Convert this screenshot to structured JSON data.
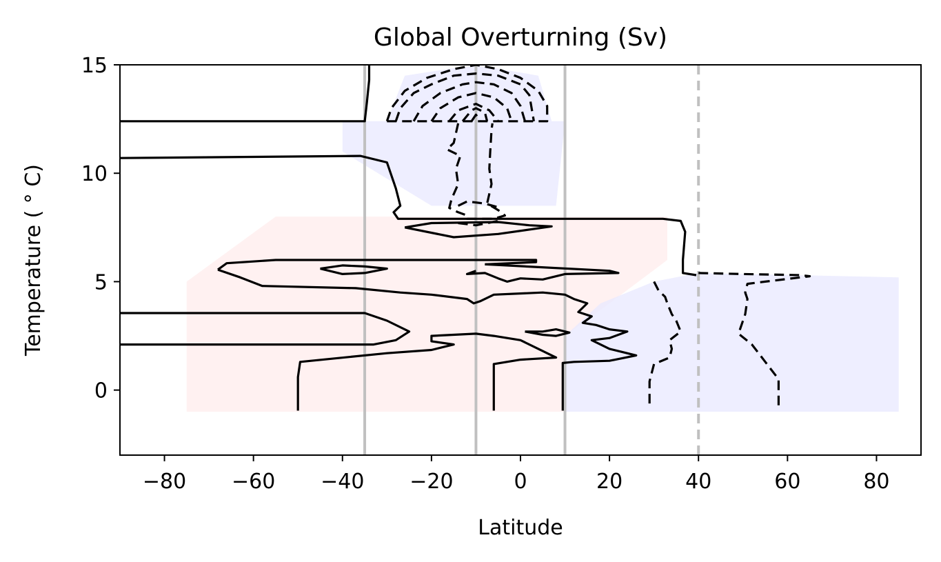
{
  "chart_data": {
    "type": "contour",
    "title": "Global Overturning (Sv)",
    "xlabel": "Latitude",
    "ylabel": "Temperature ( ° C)",
    "xlim": [
      -90,
      90
    ],
    "ylim": [
      -3,
      15
    ],
    "xticks": [
      -80,
      -60,
      -40,
      -20,
      0,
      20,
      40,
      60,
      80
    ],
    "xtick_labels": [
      "−80",
      "−60",
      "−40",
      "−20",
      "0",
      "20",
      "40",
      "60",
      "80"
    ],
    "yticks": [
      0,
      5,
      10,
      15
    ],
    "ytick_labels": [
      "0",
      "5",
      "10",
      "15"
    ],
    "grid": false,
    "colors": {
      "positive_fill": "#ffecec",
      "negative_fill": "#e8e8ff",
      "reference_line": "#c0c0c0",
      "contour": "#000000"
    },
    "vertical_reference_lines": [
      {
        "x": -35,
        "style": "solid"
      },
      {
        "x": -10,
        "style": "solid"
      },
      {
        "x": 10,
        "style": "solid"
      },
      {
        "x": 40,
        "style": "dashed"
      }
    ],
    "filled_regions": [
      {
        "sign": "positive",
        "points": [
          [
            -75,
            -1
          ],
          [
            10,
            -1
          ],
          [
            10,
            2.5
          ],
          [
            20,
            4
          ],
          [
            33,
            6
          ],
          [
            33,
            8
          ],
          [
            -55,
            8
          ],
          [
            -75,
            5
          ]
        ]
      },
      {
        "sign": "negative",
        "points": [
          [
            10,
            -1
          ],
          [
            85,
            -1
          ],
          [
            85,
            5.2
          ],
          [
            40,
            5.4
          ],
          [
            30,
            5
          ],
          [
            18,
            4
          ],
          [
            10,
            2.5
          ]
        ]
      },
      {
        "sign": "negative",
        "points": [
          [
            -30,
            12.4
          ],
          [
            7,
            12.4
          ],
          [
            4,
            14.5
          ],
          [
            -10,
            15
          ],
          [
            -26,
            14.5
          ]
        ]
      },
      {
        "sign": "negative",
        "points": [
          [
            -40,
            12.4
          ],
          [
            10,
            12.4
          ],
          [
            8,
            8.5
          ],
          [
            -20,
            8.5
          ],
          [
            -40,
            11
          ]
        ]
      }
    ],
    "contours": [
      {
        "sign": "positive",
        "points": [
          [
            -90,
            12.4
          ],
          [
            -35,
            12.4
          ],
          [
            -34.5,
            13.3
          ],
          [
            -34,
            14.3
          ],
          [
            -34,
            15
          ]
        ]
      },
      {
        "sign": "positive",
        "points": [
          [
            -90,
            10.7
          ],
          [
            -36,
            10.8
          ],
          [
            -30,
            10.5
          ],
          [
            -28,
            9.3
          ],
          [
            -27,
            8.5
          ],
          [
            -28.5,
            8.2
          ],
          [
            -27.5,
            7.9
          ],
          [
            0,
            7.9
          ],
          [
            32,
            7.9
          ],
          [
            36,
            7.8
          ],
          [
            37,
            7.3
          ],
          [
            36.5,
            6.0
          ],
          [
            36.5,
            5.4
          ],
          [
            39.5,
            5.3
          ]
        ]
      },
      {
        "sign": "positive",
        "points": [
          [
            -90,
            3.55
          ],
          [
            -35,
            3.55
          ],
          [
            -30,
            3.2
          ],
          [
            -25,
            2.7
          ],
          [
            -28,
            2.3
          ],
          [
            -33,
            2.1
          ],
          [
            -90,
            2.1
          ]
        ]
      },
      {
        "sign": "positive",
        "points": [
          [
            -68,
            5.55
          ],
          [
            -66,
            5.85
          ],
          [
            -55,
            6.0
          ],
          [
            3.5,
            6.0
          ],
          [
            3.5,
            5.9
          ],
          [
            -8,
            5.8
          ]
        ]
      },
      {
        "sign": "positive",
        "points": [
          [
            -68,
            5.55
          ],
          [
            -63,
            5.2
          ],
          [
            -58,
            4.8
          ],
          [
            -37,
            4.7
          ],
          [
            -27,
            4.5
          ],
          [
            -20,
            4.4
          ],
          [
            -12,
            4.2
          ],
          [
            -10.5,
            4.0
          ],
          [
            -9,
            4.1
          ],
          [
            -6,
            4.4
          ],
          [
            5,
            4.5
          ],
          [
            10,
            4.4
          ],
          [
            12,
            4.2
          ],
          [
            15,
            4.0
          ],
          [
            13,
            3.6
          ],
          [
            16,
            3.4
          ],
          [
            14,
            3.1
          ],
          [
            17,
            3.0
          ],
          [
            20,
            2.8
          ],
          [
            24,
            2.7
          ],
          [
            20,
            2.4
          ],
          [
            16,
            2.3
          ],
          [
            20,
            1.9
          ],
          [
            26,
            1.6
          ],
          [
            20,
            1.35
          ],
          [
            12,
            1.3
          ],
          [
            9.5,
            1.25
          ],
          [
            9.5,
            -0.95
          ]
        ]
      },
      {
        "sign": "positive",
        "points": [
          [
            -8,
            5.8
          ],
          [
            20,
            5.5
          ],
          [
            22,
            5.4
          ],
          [
            10,
            5.35
          ],
          [
            5,
            5.1
          ],
          [
            0,
            5.15
          ],
          [
            -3,
            5.0
          ],
          [
            -5,
            5.15
          ],
          [
            -8,
            5.4
          ],
          [
            -12,
            5.35
          ],
          [
            -10,
            5.5
          ]
        ]
      },
      {
        "sign": "positive",
        "points": [
          [
            -45,
            5.6
          ],
          [
            -40,
            5.75
          ],
          [
            -35,
            5.7
          ],
          [
            -30,
            5.6
          ],
          [
            -35,
            5.4
          ],
          [
            -40,
            5.35
          ],
          [
            -45,
            5.6
          ]
        ]
      },
      {
        "sign": "positive",
        "points": [
          [
            -26,
            7.5
          ],
          [
            -20,
            7.7
          ],
          [
            -5,
            7.75
          ],
          [
            2,
            7.6
          ],
          [
            7,
            7.55
          ],
          [
            -5,
            7.2
          ],
          [
            -15,
            7.05
          ],
          [
            -26,
            7.5
          ]
        ]
      },
      {
        "sign": "positive",
        "points": [
          [
            -50,
            -0.95
          ],
          [
            -50,
            0.6
          ],
          [
            -49.5,
            1.3
          ],
          [
            -30,
            1.7
          ],
          [
            -20,
            1.85
          ],
          [
            -15,
            2.1
          ],
          [
            -20,
            2.25
          ],
          [
            -20,
            2.5
          ],
          [
            -10,
            2.6
          ],
          [
            -6,
            2.5
          ],
          [
            0,
            2.3
          ],
          [
            5,
            1.8
          ],
          [
            8,
            1.5
          ],
          [
            0,
            1.4
          ],
          [
            -6,
            1.2
          ],
          [
            -6,
            -0.95
          ]
        ]
      },
      {
        "sign": "positive",
        "points": [
          [
            1,
            2.7
          ],
          [
            5,
            2.7
          ],
          [
            8,
            2.8
          ],
          [
            11,
            2.65
          ],
          [
            8,
            2.5
          ],
          [
            5,
            2.55
          ],
          [
            1,
            2.7
          ]
        ]
      },
      {
        "sign": "negative",
        "points": [
          [
            -30,
            12.4
          ],
          [
            6,
            12.4
          ],
          [
            6,
            13.1
          ],
          [
            4,
            13.8
          ],
          [
            0,
            14.4
          ],
          [
            -5,
            14.8
          ],
          [
            -10,
            15
          ],
          [
            -15,
            14.8
          ],
          [
            -21,
            14.4
          ],
          [
            -26,
            13.8
          ],
          [
            -29,
            13.0
          ],
          [
            -30,
            12.4
          ]
        ]
      },
      {
        "sign": "negative",
        "points": [
          [
            -28,
            12.4
          ],
          [
            -27,
            13.0
          ],
          [
            -24,
            13.7
          ],
          [
            -20,
            14.1
          ],
          [
            -15,
            14.5
          ],
          [
            -10,
            14.6
          ],
          [
            -5,
            14.5
          ],
          [
            0,
            14.1
          ],
          [
            2,
            13.6
          ],
          [
            3,
            12.4
          ]
        ]
      },
      {
        "sign": "negative",
        "points": [
          [
            -24,
            12.4
          ],
          [
            -22,
            13.1
          ],
          [
            -18,
            13.7
          ],
          [
            -13,
            14.1
          ],
          [
            -10,
            14.2
          ],
          [
            -6,
            14.1
          ],
          [
            -2,
            13.7
          ],
          [
            0,
            13.1
          ],
          [
            1,
            12.4
          ]
        ]
      },
      {
        "sign": "negative",
        "points": [
          [
            -20,
            12.4
          ],
          [
            -18,
            13.0
          ],
          [
            -14,
            13.5
          ],
          [
            -10,
            13.7
          ],
          [
            -6,
            13.5
          ],
          [
            -3,
            13.0
          ],
          [
            -2,
            12.4
          ]
        ]
      },
      {
        "sign": "negative",
        "points": [
          [
            -16,
            12.4
          ],
          [
            -14,
            12.9
          ],
          [
            -10,
            13.2
          ],
          [
            -7,
            12.9
          ],
          [
            -5,
            12.4
          ]
        ]
      },
      {
        "sign": "negative",
        "points": [
          [
            -13,
            12.4
          ],
          [
            -11,
            12.9
          ],
          [
            -10,
            13.0
          ],
          [
            -8,
            12.8
          ],
          [
            -7.5,
            12.4
          ]
        ]
      },
      {
        "sign": "negative",
        "points": [
          [
            -11,
            12.4
          ],
          [
            -10,
            12.7
          ],
          [
            -9,
            12.4
          ]
        ]
      },
      {
        "sign": "negative",
        "points": [
          [
            -14,
            12.3
          ],
          [
            -15,
            11.4
          ],
          [
            -16.5,
            11.1
          ],
          [
            -13.5,
            10.8
          ],
          [
            -14.5,
            10.2
          ],
          [
            -14,
            9.5
          ],
          [
            -15.5,
            8.8
          ],
          [
            -16,
            8.4
          ],
          [
            -14,
            8.2
          ],
          [
            -12,
            8.05
          ],
          [
            -12,
            7.9
          ],
          [
            -6,
            7.9
          ],
          [
            -3.5,
            8.05
          ],
          [
            -5,
            8.3
          ],
          [
            -7.5,
            8.6
          ],
          [
            -6.5,
            9.5
          ],
          [
            -7,
            10.2
          ],
          [
            -6.8,
            11.0
          ],
          [
            -6.5,
            12.0
          ],
          [
            -6.3,
            12.3
          ]
        ]
      },
      {
        "sign": "negative",
        "points": [
          [
            -14,
            8.5
          ],
          [
            -12,
            8.7
          ],
          [
            -8,
            8.6
          ],
          [
            -4.5,
            8.4
          ]
        ]
      },
      {
        "sign": "negative",
        "points": [
          [
            -14,
            7.7
          ],
          [
            -10,
            7.6
          ],
          [
            -5,
            7.8
          ]
        ]
      },
      {
        "sign": "negative",
        "points": [
          [
            40,
            5.4
          ],
          [
            50,
            5.35
          ],
          [
            63,
            5.3
          ],
          [
            65,
            5.25
          ],
          [
            55,
            5.0
          ],
          [
            51,
            4.9
          ],
          [
            50.5,
            4.5
          ],
          [
            51,
            4.2
          ],
          [
            50.5,
            3.5
          ],
          [
            49,
            2.6
          ],
          [
            52,
            2.1
          ],
          [
            55,
            1.3
          ],
          [
            58,
            0.5
          ],
          [
            58,
            -0.7
          ]
        ]
      },
      {
        "sign": "negative",
        "points": [
          [
            30,
            5.0
          ],
          [
            31,
            4.6
          ],
          [
            32.5,
            4.3
          ],
          [
            33,
            4.0
          ],
          [
            34,
            3.5
          ],
          [
            35,
            3.2
          ],
          [
            36,
            2.7
          ],
          [
            33.5,
            2.3
          ],
          [
            34,
            1.9
          ],
          [
            33.5,
            1.5
          ],
          [
            30,
            1.2
          ],
          [
            29,
            0.4
          ],
          [
            29,
            -0.7
          ]
        ]
      }
    ]
  }
}
